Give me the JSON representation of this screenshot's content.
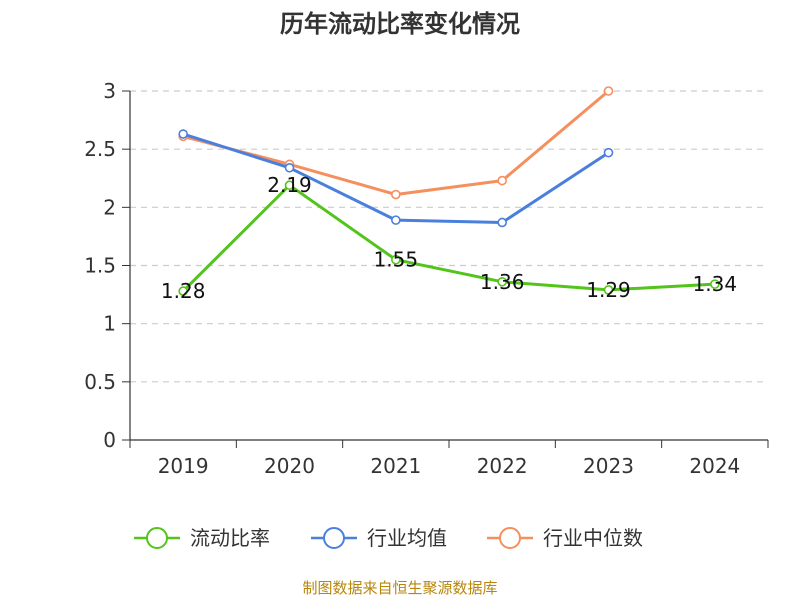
{
  "chart_data": {
    "type": "line",
    "title": "历年流动比率变化情况",
    "categories": [
      "2019",
      "2020",
      "2021",
      "2022",
      "2023",
      "2024"
    ],
    "yticks": [
      "0",
      "0.5",
      "1",
      "1.5",
      "2",
      "2.5",
      "3"
    ],
    "ylim": [
      0,
      3
    ],
    "grid": true,
    "legend_position": "bottom",
    "series": [
      {
        "name": "流动比率",
        "color": "#52c41a",
        "values": [
          1.28,
          2.19,
          1.55,
          1.36,
          1.29,
          1.34
        ],
        "labels": [
          "1.28",
          "2.19",
          "1.55",
          "1.36",
          "1.29",
          "1.34"
        ]
      },
      {
        "name": "行业均值",
        "color": "#4a7fdc",
        "values": [
          2.63,
          2.34,
          1.89,
          1.87,
          2.47,
          null
        ]
      },
      {
        "name": "行业中位数",
        "color": "#f58f5e",
        "values": [
          2.61,
          2.37,
          2.11,
          2.23,
          3.0,
          null
        ]
      }
    ],
    "source": "制图数据来自恒生聚源数据库"
  }
}
